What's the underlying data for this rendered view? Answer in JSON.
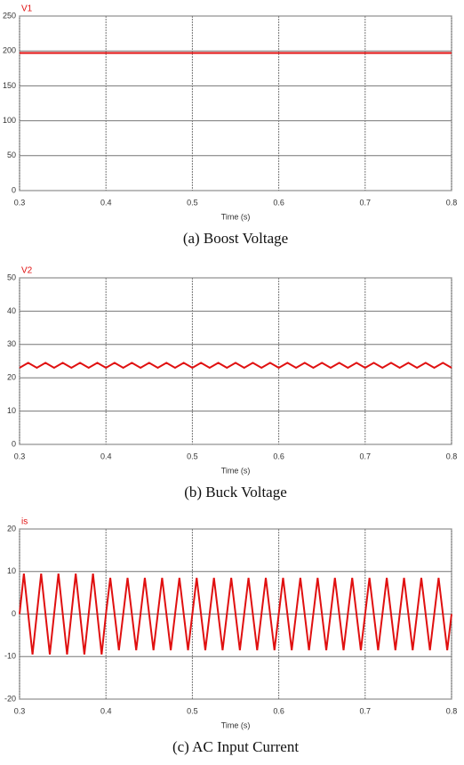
{
  "chart_data": [
    {
      "type": "line",
      "xlabel": "Time (s)",
      "caption": "(a) Boost Voltage",
      "x": [
        0.3,
        0.8
      ],
      "series": [
        {
          "name": "V1",
          "color": "#e01010",
          "values": [
            197,
            197
          ]
        }
      ],
      "xlim": [
        0.3,
        0.8
      ],
      "xticks": [
        0.3,
        0.4,
        0.5,
        0.6,
        0.7,
        0.8
      ],
      "ylim": [
        0,
        250
      ],
      "yticks": [
        0,
        50,
        100,
        150,
        200,
        250
      ],
      "grid": true
    },
    {
      "type": "line",
      "xlabel": "Time (s)",
      "caption": "(b) Buck Voltage",
      "x": [
        0.3,
        0.31,
        0.32,
        0.33,
        0.34,
        0.35,
        0.36,
        0.37,
        0.38,
        0.39,
        0.4,
        0.41,
        0.42,
        0.43,
        0.44,
        0.45,
        0.46,
        0.47,
        0.48,
        0.49,
        0.5,
        0.51,
        0.52,
        0.53,
        0.54,
        0.55,
        0.56,
        0.57,
        0.58,
        0.59,
        0.6,
        0.61,
        0.62,
        0.63,
        0.64,
        0.65,
        0.66,
        0.67,
        0.68,
        0.69,
        0.7,
        0.71,
        0.72,
        0.73,
        0.74,
        0.75,
        0.76,
        0.77,
        0.78,
        0.79,
        0.8
      ],
      "series": [
        {
          "name": "V2",
          "color": "#e01010",
          "values": [
            23,
            24.5,
            23,
            24.5,
            23,
            24.5,
            23,
            24.5,
            23,
            24.5,
            23,
            24.5,
            23,
            24.5,
            23,
            24.5,
            23,
            24.5,
            23,
            24.5,
            23,
            24.5,
            23,
            24.5,
            23,
            24.5,
            23,
            24.5,
            23,
            24.5,
            23,
            24.5,
            23,
            24.5,
            23,
            24.5,
            23,
            24.5,
            23,
            24.5,
            23,
            24.5,
            23,
            24.5,
            23,
            24.5,
            23,
            24.5,
            23,
            24.5,
            23
          ]
        }
      ],
      "xlim": [
        0.3,
        0.8
      ],
      "xticks": [
        0.3,
        0.4,
        0.5,
        0.6,
        0.7,
        0.8
      ],
      "ylim": [
        0,
        50
      ],
      "yticks": [
        0,
        10,
        20,
        30,
        40,
        50
      ],
      "grid": true
    },
    {
      "type": "line",
      "xlabel": "Time (s)",
      "caption": "(c) AC Input Current",
      "x": [
        0.3,
        0.305,
        0.31,
        0.315,
        0.32,
        0.325,
        0.33,
        0.335,
        0.34,
        0.345,
        0.35,
        0.355,
        0.36,
        0.365,
        0.37,
        0.375,
        0.38,
        0.385,
        0.39,
        0.395,
        0.4,
        0.405,
        0.41,
        0.415,
        0.42,
        0.425,
        0.43,
        0.435,
        0.44,
        0.445,
        0.45,
        0.455,
        0.46,
        0.465,
        0.47,
        0.475,
        0.48,
        0.485,
        0.49,
        0.495,
        0.5,
        0.505,
        0.51,
        0.515,
        0.52,
        0.525,
        0.53,
        0.535,
        0.54,
        0.545,
        0.55,
        0.555,
        0.56,
        0.565,
        0.57,
        0.575,
        0.58,
        0.585,
        0.59,
        0.595,
        0.6,
        0.605,
        0.61,
        0.615,
        0.62,
        0.625,
        0.63,
        0.635,
        0.64,
        0.645,
        0.65,
        0.655,
        0.66,
        0.665,
        0.67,
        0.675,
        0.68,
        0.685,
        0.69,
        0.695,
        0.7,
        0.705,
        0.71,
        0.715,
        0.72,
        0.725,
        0.73,
        0.735,
        0.74,
        0.745,
        0.75,
        0.755,
        0.76,
        0.765,
        0.77,
        0.775,
        0.78,
        0.785,
        0.79,
        0.795,
        0.8
      ],
      "series": [
        {
          "name": "is",
          "color": "#e01010",
          "values": [
            0,
            9.5,
            0,
            -9.5,
            0,
            9.5,
            0,
            -9.5,
            0,
            9.5,
            0,
            -9.5,
            0,
            9.5,
            0,
            -9.5,
            0,
            9.5,
            0,
            -9.5,
            0,
            8.5,
            0,
            -8.5,
            0,
            8.5,
            0,
            -8.5,
            0,
            8.5,
            0,
            -8.5,
            0,
            8.5,
            0,
            -8.5,
            0,
            8.5,
            0,
            -8.5,
            0,
            8.5,
            0,
            -8.5,
            0,
            8.5,
            0,
            -8.5,
            0,
            8.5,
            0,
            -8.5,
            0,
            8.5,
            0,
            -8.5,
            0,
            8.5,
            0,
            -8.5,
            0,
            8.5,
            0,
            -8.5,
            0,
            8.5,
            0,
            -8.5,
            0,
            8.5,
            0,
            -8.5,
            0,
            8.5,
            0,
            -8.5,
            0,
            8.5,
            0,
            -8.5,
            0,
            8.5,
            0,
            -8.5,
            0,
            8.5,
            0,
            -8.5,
            0,
            8.5,
            0,
            -8.5,
            0,
            8.5,
            0,
            -8.5,
            0,
            8.5,
            0,
            -8.5,
            0
          ]
        }
      ],
      "xlim": [
        0.3,
        0.8
      ],
      "xticks": [
        0.3,
        0.4,
        0.5,
        0.6,
        0.7,
        0.8
      ],
      "ylim": [
        -20,
        20
      ],
      "yticks": [
        -20,
        -10,
        0,
        10,
        20
      ],
      "grid": true
    }
  ]
}
